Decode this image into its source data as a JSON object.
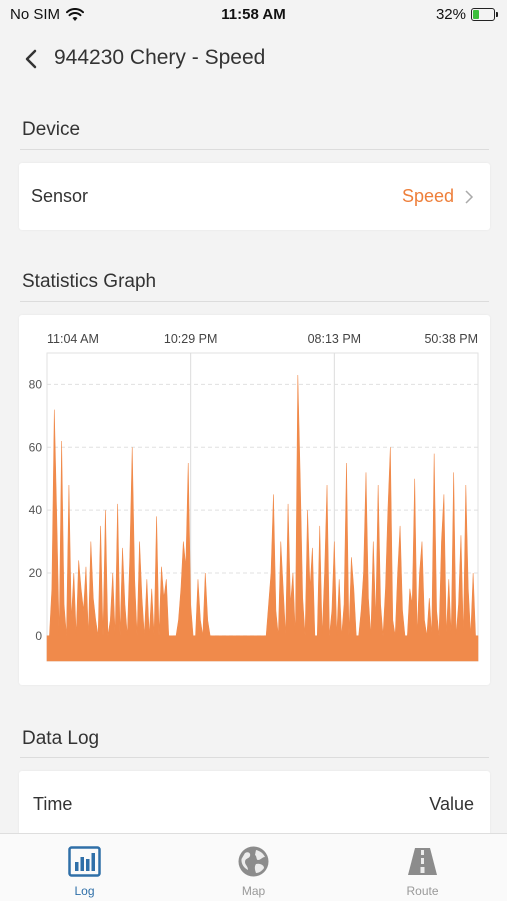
{
  "status_bar": {
    "carrier": "No SIM",
    "time": "11:58 AM",
    "battery": "32%",
    "battery_level": 0.32
  },
  "header": {
    "title": "944230 Chery - Speed"
  },
  "device_section": {
    "title": "Device",
    "sensor_label": "Sensor",
    "sensor_value": "Speed"
  },
  "graph_section": {
    "title": "Statistics Graph"
  },
  "chart_data": {
    "type": "area",
    "x_tick_labels": [
      "11:04 AM",
      "10:29 PM",
      "08:13 PM",
      "50:38 PM"
    ],
    "y_ticks": [
      0,
      20,
      40,
      60,
      80
    ],
    "ylim": [
      -8,
      90
    ],
    "grid": true,
    "color": "#f08a4b",
    "series": [
      {
        "values": [
          0,
          0,
          15,
          72,
          38,
          0,
          62,
          10,
          0,
          48,
          5,
          20,
          0,
          24,
          15,
          8,
          22,
          0,
          30,
          12,
          5,
          0,
          35,
          0,
          40,
          0,
          5,
          20,
          0,
          42,
          0,
          28,
          10,
          0,
          25,
          60,
          18,
          0,
          30,
          12,
          0,
          18,
          0,
          15,
          0,
          38,
          0,
          22,
          12,
          18,
          0,
          0,
          0,
          0,
          5,
          15,
          30,
          22,
          55,
          10,
          0,
          0,
          18,
          5,
          0,
          20,
          5,
          0,
          0,
          0,
          0,
          0,
          0,
          0,
          0,
          0,
          0,
          0,
          0,
          0,
          0,
          0,
          0,
          0,
          0,
          0,
          0,
          0,
          0,
          0,
          0,
          10,
          20,
          45,
          8,
          0,
          30,
          15,
          0,
          42,
          10,
          20,
          0,
          83,
          50,
          12,
          0,
          40,
          15,
          28,
          0,
          0,
          35,
          0,
          20,
          48,
          0,
          8,
          30,
          0,
          18,
          0,
          10,
          55,
          0,
          25,
          15,
          0,
          0,
          8,
          20,
          52,
          12,
          0,
          30,
          5,
          48,
          10,
          0,
          15,
          40,
          60,
          5,
          0,
          20,
          35,
          8,
          0,
          0,
          15,
          10,
          50,
          0,
          20,
          30,
          5,
          0,
          12,
          0,
          58,
          8,
          0,
          30,
          45,
          0,
          18,
          0,
          52,
          0,
          10,
          32,
          0,
          48,
          15,
          0,
          20,
          0,
          0
        ]
      }
    ]
  },
  "datalog_section": {
    "title": "Data Log",
    "col_time": "Time",
    "col_value": "Value"
  },
  "tabs": [
    {
      "label": "Log",
      "icon": "bar-chart-icon",
      "active": true
    },
    {
      "label": "Map",
      "icon": "globe-icon",
      "active": false
    },
    {
      "label": "Route",
      "icon": "road-icon",
      "active": false
    }
  ],
  "colors": {
    "accent": "#ee7f3a",
    "tab_active": "#2f6fa8",
    "tab_inactive": "#999999"
  }
}
